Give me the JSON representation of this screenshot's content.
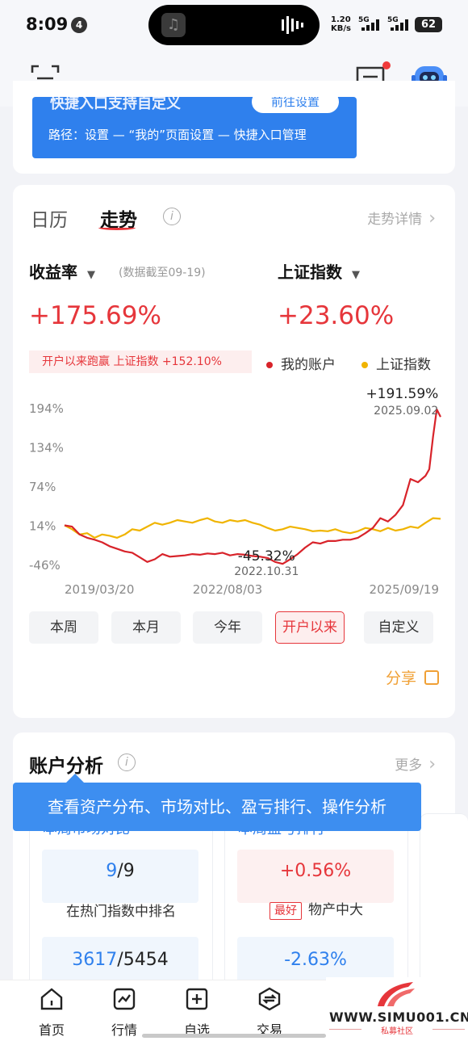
{
  "status": {
    "time": "8:09",
    "notif_count": "4",
    "net_speed_value": "1.20",
    "net_speed_unit": "KB/s",
    "sig1": "5G",
    "sig2": "5G",
    "battery": "62"
  },
  "banner": {
    "clipped_text": "快捷入口支持自定义",
    "button": "前往设置",
    "path": "路径：设置 — “我的”页面设置 — 快捷入口管理"
  },
  "trend": {
    "tab_calendar": "日历",
    "tab_trend": "走势",
    "detail_link": "走势详情",
    "metric1": {
      "label": "收益率",
      "value": "+175.69%"
    },
    "asof": "(数据截至09-19)",
    "metric2": {
      "label": "上证指数",
      "value": "+23.60%"
    },
    "beat_text": "开户以来跑赢 上证指数 +152.10%",
    "legend_mine": "我的账户",
    "legend_index": "上证指数",
    "colors": {
      "mine": "#d8232a",
      "index": "#f0b400",
      "accent": "#e6363b"
    },
    "ranges": [
      "本周",
      "本月",
      "今年",
      "开户以来",
      "自定义"
    ],
    "active_range": "开户以来",
    "share": "分享"
  },
  "chart_data": {
    "type": "line",
    "y_ticks": [
      "194%",
      "134%",
      "74%",
      "14%",
      "-46%"
    ],
    "x_ticks": [
      "2019/03/20",
      "2022/08/03",
      "2025/09/19"
    ],
    "ylim": [
      -46,
      194
    ],
    "series": [
      {
        "name": "我的账户",
        "color": "#d8232a",
        "x": [
          0,
          2,
          4,
          6,
          8,
          10,
          12,
          14,
          16,
          18,
          20,
          22,
          24,
          26,
          28,
          30,
          32,
          34,
          36,
          38,
          40,
          42,
          44,
          46,
          48,
          50,
          52,
          54,
          56,
          58,
          60,
          62,
          64,
          66,
          68,
          70,
          72,
          74,
          76,
          78,
          80,
          82,
          84,
          86,
          88,
          90,
          92,
          94,
          96,
          97,
          98,
          99,
          100
        ],
        "y": [
          14,
          12,
          0,
          -5,
          -8,
          -12,
          -18,
          -22,
          -26,
          -28,
          -35,
          -42,
          -38,
          -30,
          -34,
          -33,
          -32,
          -30,
          -31,
          -29,
          -30,
          -28,
          -32,
          -30,
          -31,
          -33,
          -34,
          -36,
          -42,
          -45,
          -38,
          -30,
          -20,
          -12,
          -14,
          -10,
          -10,
          -8,
          -8,
          -5,
          2,
          10,
          25,
          20,
          30,
          45,
          85,
          80,
          90,
          100,
          150,
          191.59,
          180
        ]
      },
      {
        "name": "上证指数",
        "color": "#f0b400",
        "x": [
          0,
          2,
          4,
          6,
          8,
          10,
          12,
          14,
          16,
          18,
          20,
          22,
          24,
          26,
          28,
          30,
          32,
          34,
          36,
          38,
          40,
          42,
          44,
          46,
          48,
          50,
          52,
          54,
          56,
          58,
          60,
          62,
          64,
          66,
          68,
          70,
          72,
          74,
          76,
          78,
          80,
          82,
          84,
          86,
          88,
          90,
          92,
          94,
          96,
          98,
          100
        ],
        "y": [
          14,
          8,
          0,
          2,
          -5,
          0,
          -2,
          -5,
          0,
          8,
          6,
          12,
          18,
          15,
          18,
          22,
          20,
          18,
          22,
          25,
          20,
          18,
          22,
          20,
          22,
          18,
          15,
          10,
          6,
          8,
          12,
          10,
          8,
          5,
          6,
          5,
          8,
          4,
          2,
          5,
          10,
          8,
          5,
          10,
          6,
          8,
          12,
          10,
          18,
          25,
          24
        ]
      }
    ],
    "annotations": [
      {
        "text_value": "+191.59%",
        "text_date": "2025.09.02"
      },
      {
        "text_value": "-45.32%",
        "text_date": "2022.10.31"
      }
    ]
  },
  "analysis": {
    "title": "账户分析",
    "more": "更多",
    "tooltip": "查看资产分布、市场对比、盈亏排行、操作分析",
    "card1": {
      "title": "本周市场对比",
      "rank_value": "9",
      "rank_total": "/9",
      "rank_label": "在热门指数中排名",
      "bottom_value": "3617",
      "bottom_total": "/5454"
    },
    "card2": {
      "title": "本周盈亏排行",
      "top_value": "+0.56%",
      "best_tag": "最好",
      "top_label": "物产中大",
      "bottom_value": "-2.63%"
    }
  },
  "nav": [
    "首页",
    "行情",
    "自选",
    "交易"
  ],
  "watermark": {
    "text": "WWW.SIMU001.CN",
    "sub": "私募社区"
  }
}
